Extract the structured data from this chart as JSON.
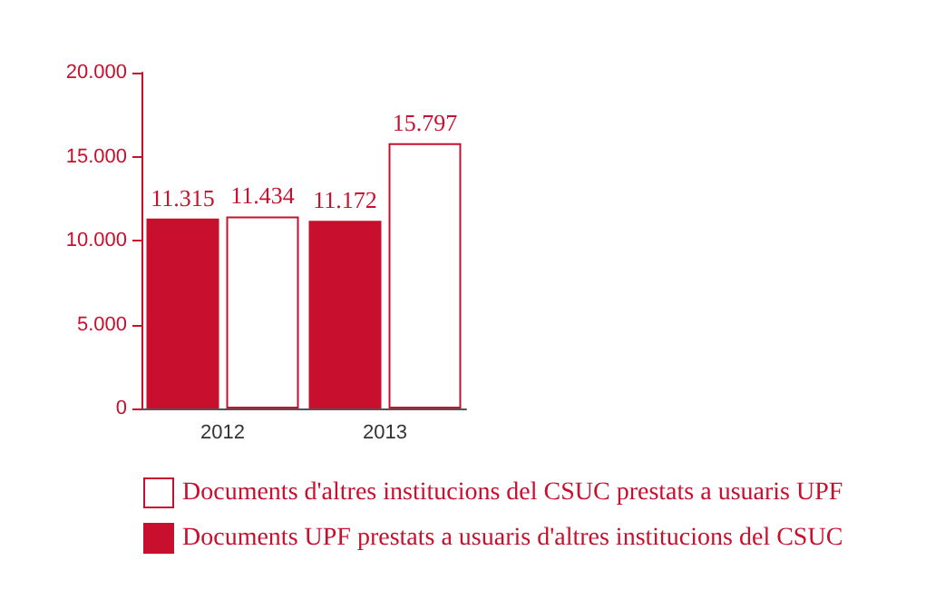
{
  "chart_data": {
    "type": "bar",
    "categories": [
      "2012",
      "2013"
    ],
    "series": [
      {
        "name": "Documents UPF prestats a usuaris d'altres institucions del CSUC",
        "color": "#c8102e",
        "values": [
          11315,
          11172
        ],
        "value_labels": [
          "11.315",
          "11.172"
        ]
      },
      {
        "name": "Documents d'altres institucions del CSUC prestats a usuaris UPF",
        "color": "#ffffff",
        "values": [
          11434,
          15797
        ],
        "value_labels": [
          "11.434",
          "15.797"
        ]
      }
    ],
    "ylim": [
      0,
      20000
    ],
    "yticks": [
      {
        "value": 0,
        "label": "0"
      },
      {
        "value": 5000,
        "label": "5.000"
      },
      {
        "value": 10000,
        "label": "10.000"
      },
      {
        "value": 15000,
        "label": "15.000"
      },
      {
        "value": 20000,
        "label": "20.000"
      }
    ],
    "grid": false,
    "legend": "bottom"
  }
}
